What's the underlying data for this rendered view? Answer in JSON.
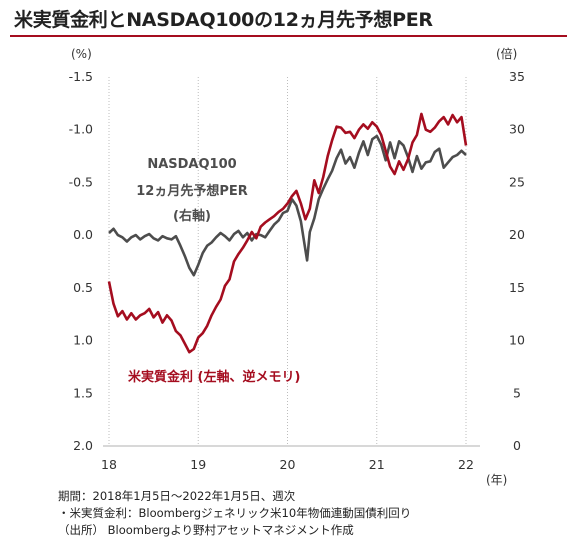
{
  "title": "米実質金利とNASDAQ100の12ヵ月先予想PER",
  "colors": {
    "title_rule": "#a50d1f",
    "real_rate": "#a50d1f",
    "nasdaq": "#4d4d4d"
  },
  "chart_data": {
    "type": "line",
    "x_ticks": [
      "18",
      "19",
      "20",
      "21",
      "22"
    ],
    "x_unit": "(年)",
    "left_axis": {
      "unit": "(%)",
      "range": [
        2.0,
        -1.5
      ],
      "ticks": [
        -1.5,
        -1.0,
        -0.5,
        0.0,
        0.5,
        1.0,
        1.5,
        2.0
      ],
      "tick_labels": [
        "-1.5",
        "-1.0",
        "-0.5",
        "0.0",
        "0.5",
        "1.0",
        "1.5",
        "2.0"
      ],
      "inverted": true
    },
    "right_axis": {
      "unit": "(倍)",
      "range": [
        0,
        35
      ],
      "ticks": [
        0,
        5,
        10,
        15,
        20,
        25,
        30,
        35
      ],
      "tick_labels": [
        "0",
        "5",
        "10",
        "15",
        "20",
        "25",
        "30",
        "35"
      ]
    },
    "grid": "vertical-year-lines",
    "series": [
      {
        "name": "NASDAQ100 12ヵ月先予想PER (右軸)",
        "label_lines": [
          "NASDAQ100",
          "12ヵ月先予想PER",
          "(右軸)"
        ],
        "axis": "right",
        "x": [
          2018.0,
          2018.05,
          2018.1,
          2018.15,
          2018.2,
          2018.25,
          2018.3,
          2018.35,
          2018.4,
          2018.45,
          2018.5,
          2018.55,
          2018.6,
          2018.65,
          2018.7,
          2018.75,
          2018.8,
          2018.85,
          2018.9,
          2018.95,
          2019.0,
          2019.05,
          2019.1,
          2019.15,
          2019.2,
          2019.25,
          2019.3,
          2019.35,
          2019.4,
          2019.45,
          2019.5,
          2019.55,
          2019.6,
          2019.65,
          2019.7,
          2019.75,
          2019.8,
          2019.85,
          2019.9,
          2019.95,
          2020.0,
          2020.05,
          2020.1,
          2020.15,
          2020.2,
          2020.22,
          2020.25,
          2020.3,
          2020.35,
          2020.4,
          2020.45,
          2020.5,
          2020.55,
          2020.6,
          2020.65,
          2020.7,
          2020.75,
          2020.8,
          2020.85,
          2020.9,
          2020.95,
          2021.0,
          2021.05,
          2021.1,
          2021.15,
          2021.2,
          2021.25,
          2021.3,
          2021.35,
          2021.4,
          2021.45,
          2021.5,
          2021.55,
          2021.6,
          2021.65,
          2021.7,
          2021.75,
          2021.8,
          2021.85,
          2021.9,
          2021.95,
          2022.0
        ],
        "values": [
          20.2,
          20.6,
          20.0,
          19.8,
          19.4,
          19.8,
          20.0,
          19.6,
          19.9,
          20.1,
          19.7,
          19.5,
          19.9,
          19.7,
          19.6,
          19.9,
          19.0,
          18.0,
          16.9,
          16.2,
          17.2,
          18.3,
          19.0,
          19.3,
          19.8,
          20.2,
          19.9,
          19.5,
          20.1,
          20.4,
          19.8,
          20.2,
          19.5,
          20.1,
          20.0,
          19.8,
          20.4,
          21.0,
          21.4,
          22.1,
          22.3,
          23.4,
          22.8,
          21.3,
          18.6,
          17.6,
          20.3,
          21.6,
          23.4,
          24.4,
          25.3,
          26.1,
          27.3,
          28.1,
          26.8,
          27.4,
          26.4,
          27.8,
          28.9,
          27.6,
          29.1,
          29.4,
          28.6,
          27.1,
          28.8,
          27.3,
          28.9,
          28.5,
          27.4,
          26.0,
          27.5,
          26.3,
          26.9,
          27.0,
          27.9,
          28.2,
          26.4,
          26.9,
          27.4,
          27.6,
          28.0,
          27.6
        ]
      },
      {
        "name": "米実質金利 (左軸、逆メモリ)",
        "label_text": "米実質金利 (左軸、逆メモリ)",
        "axis": "left",
        "x": [
          2018.0,
          2018.05,
          2018.1,
          2018.15,
          2018.2,
          2018.25,
          2018.3,
          2018.35,
          2018.4,
          2018.45,
          2018.5,
          2018.55,
          2018.6,
          2018.65,
          2018.7,
          2018.75,
          2018.8,
          2018.85,
          2018.9,
          2018.95,
          2019.0,
          2019.05,
          2019.1,
          2019.15,
          2019.2,
          2019.25,
          2019.3,
          2019.35,
          2019.4,
          2019.45,
          2019.5,
          2019.55,
          2019.6,
          2019.65,
          2019.7,
          2019.75,
          2019.8,
          2019.85,
          2019.9,
          2019.95,
          2020.0,
          2020.05,
          2020.1,
          2020.15,
          2020.2,
          2020.25,
          2020.3,
          2020.35,
          2020.4,
          2020.45,
          2020.5,
          2020.55,
          2020.6,
          2020.65,
          2020.7,
          2020.75,
          2020.8,
          2020.85,
          2020.9,
          2020.95,
          2021.0,
          2021.05,
          2021.1,
          2021.15,
          2021.2,
          2021.25,
          2021.3,
          2021.35,
          2021.4,
          2021.45,
          2021.5,
          2021.55,
          2021.6,
          2021.65,
          2021.7,
          2021.75,
          2021.8,
          2021.85,
          2021.9,
          2021.95,
          2022.0
        ],
        "values": [
          0.44,
          0.65,
          0.77,
          0.72,
          0.8,
          0.74,
          0.8,
          0.76,
          0.74,
          0.7,
          0.78,
          0.73,
          0.83,
          0.76,
          0.81,
          0.91,
          0.95,
          1.03,
          1.11,
          1.08,
          0.97,
          0.93,
          0.86,
          0.76,
          0.68,
          0.61,
          0.48,
          0.42,
          0.25,
          0.18,
          0.12,
          0.05,
          -0.03,
          0.03,
          -0.08,
          -0.12,
          -0.15,
          -0.18,
          -0.22,
          -0.25,
          -0.3,
          -0.37,
          -0.42,
          -0.3,
          -0.15,
          -0.25,
          -0.52,
          -0.4,
          -0.55,
          -0.75,
          -0.9,
          -1.03,
          -1.02,
          -0.97,
          -0.98,
          -0.92,
          -1.0,
          -1.05,
          -1.01,
          -1.07,
          -1.03,
          -0.95,
          -0.8,
          -0.65,
          -0.58,
          -0.7,
          -0.62,
          -0.72,
          -0.88,
          -0.95,
          -1.15,
          -1.0,
          -0.98,
          -1.02,
          -1.08,
          -1.12,
          -1.05,
          -1.14,
          -1.07,
          -1.12,
          -0.85
        ]
      }
    ]
  },
  "notes": [
    "期間：2018年1月5日～2022年1月5日、週次",
    "・米実質金利：Bloombergジェネリック米10年物価連動国債利回り",
    "（出所） Bloombergより野村アセットマネジメント作成"
  ]
}
